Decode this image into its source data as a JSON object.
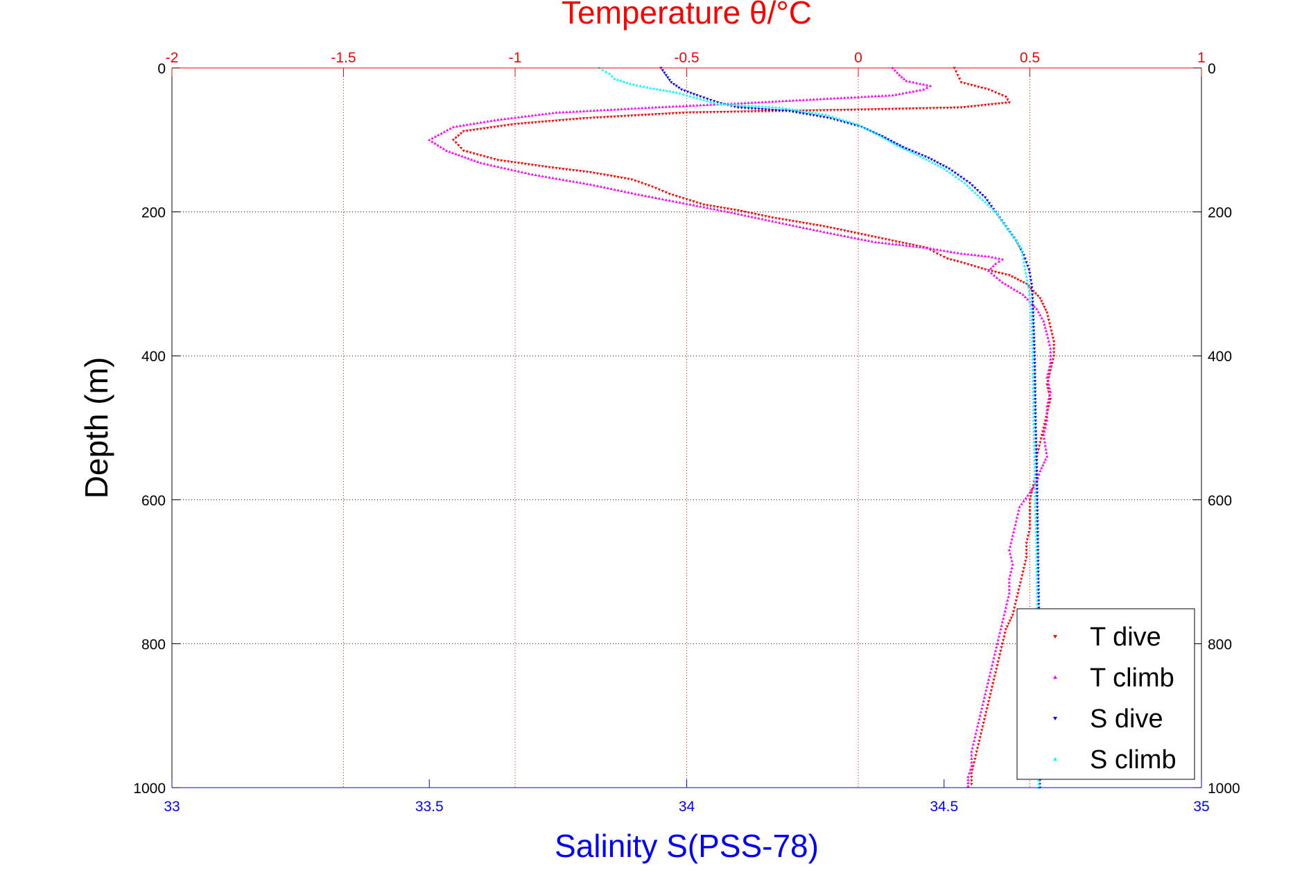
{
  "chart_data": {
    "type": "scatter",
    "title": "Temperature θ/°C",
    "xlabel": "Salinity S(PSS-78)",
    "ylabel": "Depth (m)",
    "temperature_axis": {
      "label": "Temperature θ/°C",
      "range": [
        -2,
        1
      ],
      "ticks": [
        -2,
        -1.5,
        -1,
        -0.5,
        0,
        0.5,
        1
      ],
      "tick_labels": [
        "-2",
        "-1.5",
        "-1",
        "-0.5",
        "0",
        "0.5",
        "1"
      ],
      "position": "top",
      "color": "#ff0000"
    },
    "salinity_axis": {
      "label": "Salinity S(PSS-78)",
      "range": [
        33,
        35
      ],
      "ticks": [
        33,
        33.5,
        34,
        34.5,
        35
      ],
      "tick_labels": [
        "33",
        "33.5",
        "34",
        "34.5",
        "35"
      ],
      "position": "bottom",
      "color": "#0000ff"
    },
    "depth_axis": {
      "label": "Depth (m)",
      "range": [
        0,
        1000
      ],
      "reversed": true,
      "ticks": [
        0,
        200,
        400,
        600,
        800,
        1000
      ],
      "tick_labels": [
        "0",
        "200",
        "400",
        "600",
        "800",
        "1000"
      ]
    },
    "grid": true,
    "legend_position": "bottom-right",
    "series": [
      {
        "name": "T dive",
        "axis": "temperature",
        "color": "#ff0000",
        "marker": "triangle-down",
        "points": [
          [
            0.28,
            0
          ],
          [
            0.29,
            10
          ],
          [
            0.3,
            20
          ],
          [
            0.34,
            25
          ],
          [
            0.38,
            30
          ],
          [
            0.43,
            40
          ],
          [
            0.44,
            48
          ],
          [
            0.3,
            55
          ],
          [
            0.0,
            58
          ],
          [
            -0.5,
            62
          ],
          [
            -0.8,
            70
          ],
          [
            -1.0,
            78
          ],
          [
            -1.15,
            88
          ],
          [
            -1.18,
            100
          ],
          [
            -1.15,
            115
          ],
          [
            -1.05,
            128
          ],
          [
            -0.9,
            138
          ],
          [
            -0.78,
            145
          ],
          [
            -0.66,
            155
          ],
          [
            -0.6,
            165
          ],
          [
            -0.55,
            175
          ],
          [
            -0.45,
            190
          ],
          [
            -0.35,
            198
          ],
          [
            -0.25,
            208
          ],
          [
            -0.1,
            220
          ],
          [
            0.0,
            230
          ],
          [
            0.1,
            240
          ],
          [
            0.2,
            250
          ],
          [
            0.23,
            258
          ],
          [
            0.26,
            265
          ],
          [
            0.3,
            270
          ],
          [
            0.37,
            280
          ],
          [
            0.44,
            288
          ],
          [
            0.49,
            300
          ],
          [
            0.53,
            320
          ],
          [
            0.55,
            340
          ],
          [
            0.56,
            360
          ],
          [
            0.57,
            380
          ],
          [
            0.57,
            400
          ],
          [
            0.56,
            420
          ],
          [
            0.55,
            440
          ],
          [
            0.56,
            460
          ],
          [
            0.55,
            480
          ],
          [
            0.54,
            500
          ],
          [
            0.53,
            520
          ],
          [
            0.52,
            540
          ],
          [
            0.52,
            560
          ],
          [
            0.51,
            580
          ],
          [
            0.5,
            600
          ],
          [
            0.5,
            620
          ],
          [
            0.5,
            640
          ],
          [
            0.49,
            660
          ],
          [
            0.49,
            680
          ],
          [
            0.48,
            700
          ],
          [
            0.47,
            720
          ],
          [
            0.46,
            740
          ],
          [
            0.45,
            760
          ],
          [
            0.43,
            780
          ],
          [
            0.42,
            800
          ],
          [
            0.41,
            820
          ],
          [
            0.4,
            840
          ],
          [
            0.39,
            860
          ],
          [
            0.38,
            880
          ],
          [
            0.37,
            900
          ],
          [
            0.36,
            920
          ],
          [
            0.35,
            940
          ],
          [
            0.34,
            960
          ],
          [
            0.33,
            980
          ],
          [
            0.33,
            995
          ]
        ]
      },
      {
        "name": "T climb",
        "axis": "temperature",
        "color": "#ff00ff",
        "marker": "triangle-up",
        "points": [
          [
            0.1,
            0
          ],
          [
            0.12,
            10
          ],
          [
            0.14,
            18
          ],
          [
            0.18,
            22
          ],
          [
            0.21,
            25
          ],
          [
            0.19,
            30
          ],
          [
            0.1,
            38
          ],
          [
            -0.3,
            48
          ],
          [
            -0.6,
            55
          ],
          [
            -0.88,
            62
          ],
          [
            -1.05,
            72
          ],
          [
            -1.18,
            82
          ],
          [
            -1.25,
            100
          ],
          [
            -1.2,
            115
          ],
          [
            -1.1,
            132
          ],
          [
            -0.95,
            148
          ],
          [
            -0.78,
            162
          ],
          [
            -0.65,
            175
          ],
          [
            -0.52,
            187
          ],
          [
            -0.38,
            200
          ],
          [
            -0.25,
            213
          ],
          [
            -0.1,
            228
          ],
          [
            0.05,
            242
          ],
          [
            0.2,
            250
          ],
          [
            0.3,
            258
          ],
          [
            0.38,
            262
          ],
          [
            0.42,
            266
          ],
          [
            0.4,
            272
          ],
          [
            0.38,
            282
          ],
          [
            0.42,
            298
          ],
          [
            0.48,
            315
          ],
          [
            0.52,
            335
          ],
          [
            0.54,
            352
          ],
          [
            0.55,
            370
          ],
          [
            0.56,
            390
          ],
          [
            0.56,
            410
          ],
          [
            0.55,
            430
          ],
          [
            0.56,
            450
          ],
          [
            0.55,
            470
          ],
          [
            0.55,
            490
          ],
          [
            0.54,
            510
          ],
          [
            0.55,
            540
          ],
          [
            0.53,
            560
          ],
          [
            0.52,
            575
          ],
          [
            0.5,
            590
          ],
          [
            0.47,
            610
          ],
          [
            0.46,
            630
          ],
          [
            0.45,
            650
          ],
          [
            0.44,
            670
          ],
          [
            0.45,
            690
          ],
          [
            0.44,
            710
          ],
          [
            0.44,
            730
          ],
          [
            0.43,
            750
          ],
          [
            0.42,
            770
          ],
          [
            0.41,
            790
          ],
          [
            0.4,
            810
          ],
          [
            0.39,
            830
          ],
          [
            0.38,
            850
          ],
          [
            0.37,
            870
          ],
          [
            0.36,
            890
          ],
          [
            0.35,
            910
          ],
          [
            0.34,
            930
          ],
          [
            0.33,
            950
          ],
          [
            0.33,
            970
          ],
          [
            0.32,
            985
          ],
          [
            0.32,
            998
          ]
        ]
      },
      {
        "name": "S dive",
        "axis": "salinity",
        "color": "#0000ff",
        "marker": "triangle-down",
        "points": [
          [
            33.95,
            0
          ],
          [
            33.96,
            10
          ],
          [
            33.97,
            20
          ],
          [
            33.99,
            30
          ],
          [
            34.02,
            38
          ],
          [
            34.06,
            48
          ],
          [
            34.1,
            55
          ],
          [
            34.2,
            60
          ],
          [
            34.28,
            70
          ],
          [
            34.34,
            82
          ],
          [
            34.38,
            95
          ],
          [
            34.42,
            110
          ],
          [
            34.47,
            125
          ],
          [
            34.51,
            140
          ],
          [
            34.55,
            160
          ],
          [
            34.58,
            180
          ],
          [
            34.6,
            200
          ],
          [
            34.62,
            220
          ],
          [
            34.64,
            240
          ],
          [
            34.655,
            260
          ],
          [
            34.665,
            280
          ],
          [
            34.67,
            300
          ],
          [
            34.672,
            320
          ],
          [
            34.673,
            340
          ],
          [
            34.674,
            360
          ],
          [
            34.675,
            380
          ],
          [
            34.676,
            400
          ],
          [
            34.677,
            450
          ],
          [
            34.678,
            500
          ],
          [
            34.68,
            550
          ],
          [
            34.681,
            600
          ],
          [
            34.682,
            650
          ],
          [
            34.683,
            700
          ],
          [
            34.684,
            750
          ],
          [
            34.684,
            800
          ],
          [
            34.685,
            850
          ],
          [
            34.685,
            900
          ],
          [
            34.685,
            950
          ],
          [
            34.686,
            1000
          ]
        ]
      },
      {
        "name": "S climb",
        "axis": "salinity",
        "color": "#00ffff",
        "marker": "triangle-up",
        "points": [
          [
            33.83,
            0
          ],
          [
            33.85,
            8
          ],
          [
            33.86,
            15
          ],
          [
            33.89,
            22
          ],
          [
            33.93,
            28
          ],
          [
            33.98,
            34
          ],
          [
            34.02,
            42
          ],
          [
            34.06,
            50
          ],
          [
            34.18,
            55
          ],
          [
            34.27,
            65
          ],
          [
            34.33,
            78
          ],
          [
            34.37,
            92
          ],
          [
            34.41,
            108
          ],
          [
            34.46,
            125
          ],
          [
            34.5,
            140
          ],
          [
            34.54,
            160
          ],
          [
            34.57,
            180
          ],
          [
            34.6,
            200
          ],
          [
            34.62,
            220
          ],
          [
            34.64,
            240
          ],
          [
            34.65,
            250
          ],
          [
            34.655,
            270
          ],
          [
            34.66,
            290
          ],
          [
            34.665,
            310
          ],
          [
            34.668,
            330
          ],
          [
            34.67,
            350
          ],
          [
            34.672,
            400
          ],
          [
            34.673,
            450
          ],
          [
            34.674,
            500
          ],
          [
            34.676,
            550
          ],
          [
            34.677,
            600
          ],
          [
            34.679,
            650
          ],
          [
            34.68,
            700
          ],
          [
            34.681,
            750
          ],
          [
            34.682,
            800
          ],
          [
            34.683,
            850
          ],
          [
            34.683,
            900
          ],
          [
            34.684,
            950
          ],
          [
            34.684,
            1000
          ]
        ]
      }
    ]
  }
}
